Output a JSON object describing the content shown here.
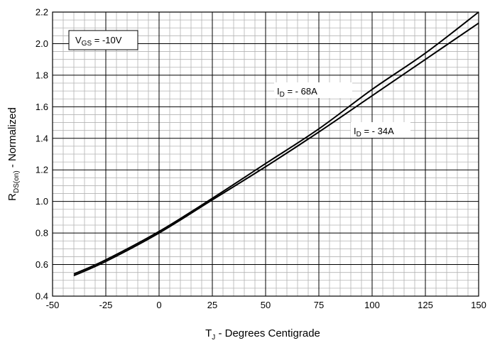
{
  "chart_data": {
    "type": "line",
    "xlabel": {
      "main": "T",
      "sub": "J",
      "rest": " - Degrees Centigrade"
    },
    "ylabel": {
      "main": "R",
      "sub": "DS(on)",
      "rest": " - Normalized"
    },
    "xlim": [
      -50,
      150
    ],
    "ylim": [
      0.4,
      2.2
    ],
    "x_ticks": [
      "-50",
      "-25",
      "0",
      "25",
      "50",
      "75",
      "100",
      "125",
      "150"
    ],
    "y_ticks": [
      "0.4",
      "0.6",
      "0.8",
      "1.0",
      "1.2",
      "1.4",
      "1.6",
      "1.8",
      "2.0",
      "2.2"
    ],
    "grid": true,
    "series": [
      {
        "name": "I D = - 68A",
        "x": [
          -40,
          -25,
          0,
          25,
          50,
          75,
          100,
          125,
          150
        ],
        "values": [
          0.54,
          0.63,
          0.81,
          1.02,
          1.24,
          1.46,
          1.71,
          1.94,
          2.2
        ]
      },
      {
        "name": "I D = - 34A",
        "x": [
          -40,
          -25,
          0,
          25,
          50,
          75,
          100,
          125,
          150
        ],
        "values": [
          0.53,
          0.62,
          0.8,
          1.01,
          1.22,
          1.44,
          1.67,
          1.9,
          2.13
        ]
      }
    ],
    "annotations": {
      "vgs": {
        "main": "V",
        "sub": "GS",
        "rest": " = -10V"
      },
      "id68": {
        "main": "I",
        "sub": "D",
        "rest": " = - 68A"
      },
      "id34": {
        "main": "I",
        "sub": "D",
        "rest": " = - 34A"
      }
    }
  }
}
